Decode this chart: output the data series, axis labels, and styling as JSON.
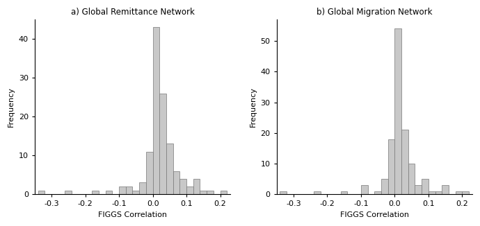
{
  "title_a": "a) Global Remittance Network",
  "title_b": "b) Global Migration Network",
  "xlabel": "FIGGS Correlation",
  "ylabel": "Frequency",
  "bar_color": "#c8c8c8",
  "bar_edgecolor": "#777777",
  "background_color": "#ffffff",
  "xlim_a": [
    -0.35,
    0.23
  ],
  "xlim_b": [
    -0.35,
    0.23
  ],
  "ylim_a": [
    0,
    45
  ],
  "ylim_b": [
    0,
    57
  ],
  "xticks": [
    -0.3,
    -0.2,
    -0.1,
    0.0,
    0.1,
    0.2
  ],
  "yticks_a": [
    0,
    10,
    20,
    30,
    40
  ],
  "yticks_b": [
    0,
    10,
    20,
    30,
    40,
    50
  ],
  "bin_width": 0.02,
  "bins_a_centers": [
    -0.33,
    -0.31,
    -0.29,
    -0.27,
    -0.25,
    -0.23,
    -0.21,
    -0.19,
    -0.17,
    -0.15,
    -0.13,
    -0.11,
    -0.09,
    -0.07,
    -0.05,
    -0.03,
    -0.01,
    0.01,
    0.03,
    0.05,
    0.07,
    0.09,
    0.11,
    0.13,
    0.15,
    0.17,
    0.19,
    0.21
  ],
  "bins_a_heights": [
    1,
    0,
    0,
    0,
    1,
    0,
    0,
    0,
    1,
    0,
    1,
    0,
    2,
    2,
    1,
    3,
    11,
    43,
    26,
    13,
    6,
    4,
    2,
    4,
    1,
    1,
    0,
    1
  ],
  "bins_b_centers": [
    -0.33,
    -0.31,
    -0.29,
    -0.27,
    -0.25,
    -0.23,
    -0.21,
    -0.19,
    -0.17,
    -0.15,
    -0.13,
    -0.11,
    -0.09,
    -0.07,
    -0.05,
    -0.03,
    -0.01,
    0.01,
    0.03,
    0.05,
    0.07,
    0.09,
    0.11,
    0.13,
    0.15,
    0.17,
    0.19,
    0.21
  ],
  "bins_b_heights": [
    1,
    0,
    0,
    0,
    0,
    1,
    0,
    0,
    0,
    1,
    0,
    0,
    3,
    0,
    1,
    5,
    18,
    54,
    21,
    10,
    3,
    5,
    1,
    1,
    3,
    0,
    1,
    1
  ],
  "title_fontsize": 8.5,
  "label_fontsize": 8,
  "tick_fontsize": 8
}
